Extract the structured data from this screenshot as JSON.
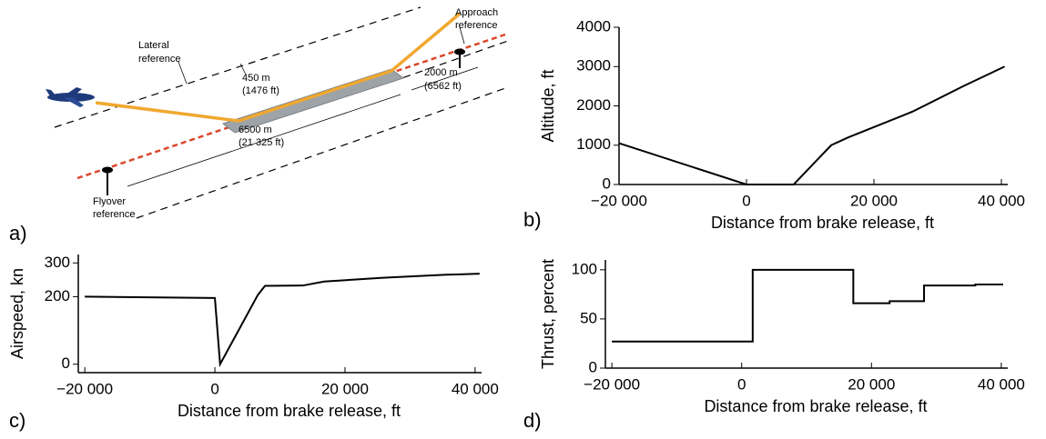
{
  "diagram": {
    "label": "a)",
    "lateral_reference": [
      "Lateral",
      "reference"
    ],
    "approach_reference": [
      "Approach",
      "reference"
    ],
    "flyover_reference": [
      "Flyover",
      "reference"
    ],
    "lateral_offset": [
      "450 m",
      "(1476 ft)"
    ],
    "approach_distance": [
      "2000 m",
      "(6562 ft)"
    ],
    "runway_length": [
      "6500 m",
      "(21 325 ft)"
    ]
  },
  "chart_data": [
    {
      "type": "line",
      "label": "b)",
      "ylabel": "Altitude, ft",
      "xlabel": "Distance from brake release, ft",
      "color": "#000000",
      "x": [
        -20000,
        0,
        7400,
        13300,
        16000,
        26000,
        34000,
        40500
      ],
      "values": [
        1050,
        0,
        0,
        1000,
        1200,
        1850,
        2500,
        3000
      ],
      "xlim": [
        -20000,
        41000
      ],
      "ylim": [
        0,
        4000
      ],
      "xticks": [
        {
          "value": -20000,
          "label": "−20 000"
        },
        0,
        {
          "value": 20000,
          "label": "20 000"
        },
        {
          "value": 40000,
          "label": "40 000"
        }
      ],
      "yticks": [
        0,
        1000,
        2000,
        3000,
        4000
      ]
    },
    {
      "type": "line",
      "label": "c)",
      "ylabel": "Airspeed, kn",
      "xlabel": "Distance from brake release, ft",
      "color": "#000000",
      "x": [
        -20000,
        0,
        800,
        6600,
        7700,
        13500,
        16800,
        25800,
        35500,
        40700
      ],
      "values": [
        200,
        196,
        0,
        205,
        232,
        233,
        245,
        256,
        265,
        268
      ],
      "xlim": [
        -21000,
        41000
      ],
      "ylim": [
        -25,
        325
      ],
      "xticks": [
        {
          "value": -20000,
          "label": "−20 000"
        },
        0,
        {
          "value": 20000,
          "label": "20 000"
        },
        {
          "value": 40000,
          "label": "40 000"
        }
      ],
      "yticks": [
        0,
        200,
        300
      ]
    },
    {
      "type": "line",
      "label": "d)",
      "ylabel": "Thrust, percent",
      "xlabel": "Distance from brake release, ft",
      "color": "#000000",
      "x": [
        -20000,
        1700,
        1700,
        17200,
        17200,
        22800,
        22800,
        28100,
        28100,
        36000,
        36000,
        40300
      ],
      "values": [
        27,
        27,
        100,
        100,
        66,
        66,
        68,
        68,
        84,
        84,
        85,
        85
      ],
      "xlim": [
        -21000,
        41000
      ],
      "ylim": [
        0,
        110
      ],
      "xticks": [
        {
          "value": -20000,
          "label": "−20 000"
        },
        0,
        {
          "value": 20000,
          "label": "20 000"
        },
        {
          "value": 40000,
          "label": "40 000"
        }
      ],
      "yticks": [
        0,
        50,
        100
      ]
    }
  ]
}
